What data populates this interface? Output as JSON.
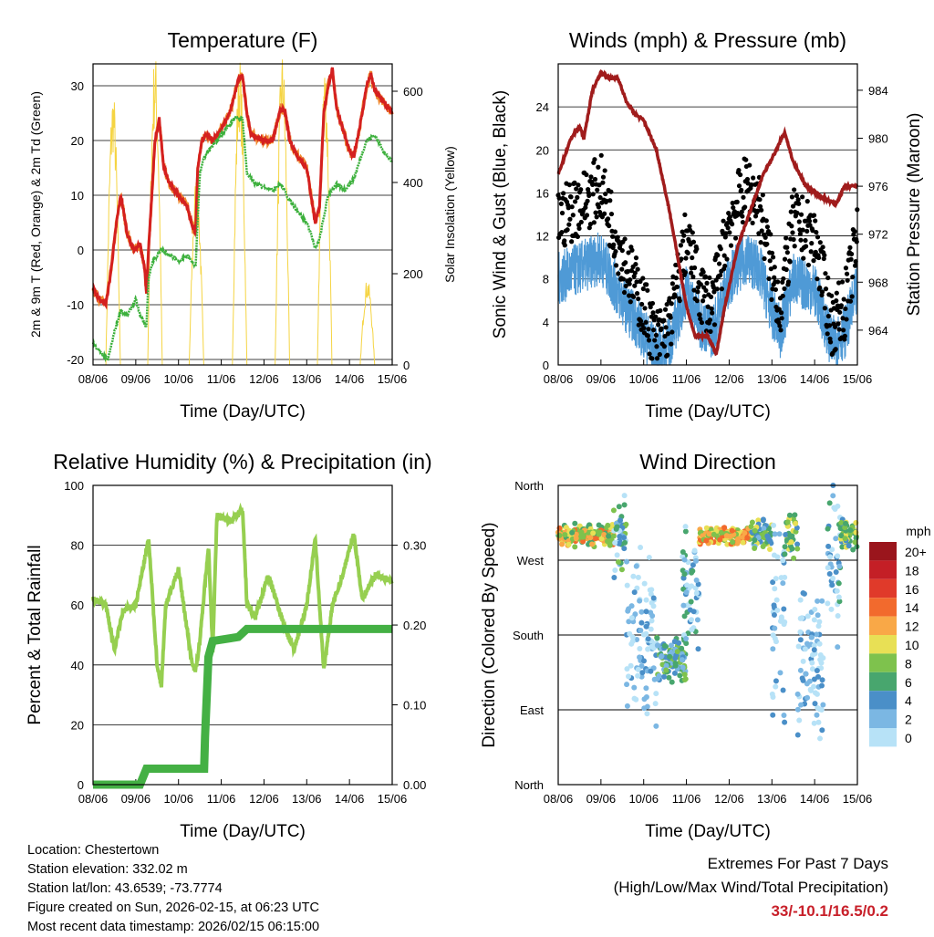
{
  "chart_data": [
    {
      "id": "temp",
      "type": "line",
      "title": "Temperature (F)",
      "xlabel": "Time (Day/UTC)",
      "ylabel": "2m & 9m T (Red, Orange) & 2m Td (Green)",
      "y2label": "Solar Insolation (Yellow)",
      "xticks": [
        "08/06",
        "09/06",
        "10/06",
        "11/06",
        "12/06",
        "13/06",
        "14/06",
        "15/06"
      ],
      "xlim": [
        0,
        7
      ],
      "ylim": [
        -21,
        34
      ],
      "yticks": [
        -20,
        -10,
        0,
        10,
        20,
        30
      ],
      "y2lim": [
        0,
        660
      ],
      "y2ticks": [
        0,
        200,
        400,
        600
      ],
      "series": [
        {
          "name": "2m T",
          "color": "#d42020",
          "axis": "left",
          "points": [
            [
              0,
              -7
            ],
            [
              0.15,
              -9
            ],
            [
              0.3,
              -10
            ],
            [
              0.4,
              -5
            ],
            [
              0.55,
              5
            ],
            [
              0.65,
              10
            ],
            [
              0.8,
              3
            ],
            [
              0.95,
              0
            ],
            [
              1.1,
              1
            ],
            [
              1.2,
              -3
            ],
            [
              1.25,
              -8
            ],
            [
              1.3,
              0
            ],
            [
              1.45,
              20
            ],
            [
              1.55,
              24
            ],
            [
              1.65,
              15
            ],
            [
              1.8,
              12
            ],
            [
              2.0,
              10
            ],
            [
              2.2,
              8
            ],
            [
              2.3,
              5
            ],
            [
              2.4,
              3
            ],
            [
              2.45,
              15
            ],
            [
              2.55,
              20
            ],
            [
              2.65,
              21
            ],
            [
              2.8,
              20
            ],
            [
              3.0,
              22
            ],
            [
              3.2,
              25
            ],
            [
              3.4,
              31
            ],
            [
              3.5,
              32
            ],
            [
              3.6,
              25
            ],
            [
              3.7,
              21
            ],
            [
              4.0,
              20
            ],
            [
              4.2,
              20
            ],
            [
              4.4,
              26
            ],
            [
              4.5,
              25
            ],
            [
              4.6,
              20
            ],
            [
              4.8,
              17
            ],
            [
              5.0,
              15
            ],
            [
              5.1,
              10
            ],
            [
              5.2,
              5
            ],
            [
              5.3,
              8
            ],
            [
              5.4,
              25
            ],
            [
              5.5,
              30
            ],
            [
              5.6,
              33
            ],
            [
              5.7,
              26
            ],
            [
              6.0,
              18
            ],
            [
              6.1,
              17
            ],
            [
              6.3,
              25
            ],
            [
              6.4,
              30
            ],
            [
              6.5,
              32
            ],
            [
              6.6,
              29
            ],
            [
              6.8,
              27
            ],
            [
              7.0,
              25
            ]
          ]
        },
        {
          "name": "2m Td",
          "color": "#3cb03c",
          "axis": "left",
          "points": [
            [
              0,
              -17
            ],
            [
              0.2,
              -19
            ],
            [
              0.35,
              -20
            ],
            [
              0.5,
              -15
            ],
            [
              0.65,
              -11
            ],
            [
              0.8,
              -12
            ],
            [
              1.0,
              -9
            ],
            [
              1.1,
              -12
            ],
            [
              1.25,
              -14
            ],
            [
              1.3,
              -5
            ],
            [
              1.4,
              -2
            ],
            [
              1.6,
              0
            ],
            [
              1.8,
              -1
            ],
            [
              2.0,
              -2
            ],
            [
              2.2,
              -1
            ],
            [
              2.4,
              -3
            ],
            [
              2.5,
              14
            ],
            [
              2.6,
              17
            ],
            [
              2.8,
              19
            ],
            [
              3.0,
              21
            ],
            [
              3.3,
              24
            ],
            [
              3.5,
              24
            ],
            [
              3.6,
              14
            ],
            [
              3.8,
              12
            ],
            [
              4.2,
              11
            ],
            [
              4.4,
              12
            ],
            [
              4.6,
              9
            ],
            [
              4.8,
              7
            ],
            [
              5.0,
              5
            ],
            [
              5.1,
              3
            ],
            [
              5.2,
              0
            ],
            [
              5.3,
              2
            ],
            [
              5.5,
              10
            ],
            [
              5.7,
              12
            ],
            [
              5.9,
              11
            ],
            [
              6.1,
              13
            ],
            [
              6.4,
              20
            ],
            [
              6.6,
              21
            ],
            [
              6.8,
              18
            ],
            [
              7.0,
              16
            ]
          ]
        },
        {
          "name": "Solar insolation",
          "color": "#f5d442",
          "axis": "right",
          "peaks": [
            [
              0.47,
              610
            ],
            [
              1.45,
              690
            ],
            [
              2.42,
              420
            ],
            [
              3.43,
              680
            ],
            [
              4.43,
              690
            ],
            [
              5.42,
              670
            ],
            [
              6.42,
              190
            ]
          ]
        }
      ]
    },
    {
      "id": "wind",
      "type": "line",
      "title": "Winds (mph) & Pressure (mb)",
      "xlabel": "Time (Day/UTC)",
      "ylabel": "Sonic Wind & Gust (Blue, Black)",
      "y2label": "Station Pressure (Maroon)",
      "xticks": [
        "08/06",
        "09/06",
        "10/06",
        "11/06",
        "12/06",
        "13/06",
        "14/06",
        "15/06"
      ],
      "xlim": [
        0,
        7
      ],
      "ylim": [
        0,
        28
      ],
      "yticks": [
        0,
        4,
        8,
        12,
        16,
        20,
        24
      ],
      "y2lim": [
        961.1,
        986.2
      ],
      "y2ticks": [
        964,
        968,
        972,
        976,
        980,
        984
      ],
      "series": [
        {
          "name": "Sonic wind",
          "color": "#4f9ad6",
          "axis": "left",
          "points": [
            [
              0,
              8
            ],
            [
              0.5,
              9
            ],
            [
              1.0,
              10
            ],
            [
              1.5,
              6
            ],
            [
              2.0,
              3
            ],
            [
              2.3,
              1
            ],
            [
              2.6,
              2
            ],
            [
              3.0,
              7
            ],
            [
              3.3,
              4
            ],
            [
              3.6,
              3
            ],
            [
              4.0,
              8
            ],
            [
              4.4,
              10
            ],
            [
              4.7,
              9
            ],
            [
              5.0,
              5
            ],
            [
              5.2,
              3
            ],
            [
              5.5,
              8
            ],
            [
              6.0,
              7
            ],
            [
              6.4,
              2
            ],
            [
              6.7,
              3
            ],
            [
              7.0,
              7
            ]
          ]
        },
        {
          "name": "Gust",
          "color": "#000000",
          "axis": "left",
          "factor": 1.6
        },
        {
          "name": "Station pressure",
          "color": "#a01c1c",
          "axis": "right",
          "points": [
            [
              0,
              977
            ],
            [
              0.3,
              980
            ],
            [
              0.5,
              981
            ],
            [
              0.6,
              980
            ],
            [
              0.8,
              984
            ],
            [
              1.0,
              985.5
            ],
            [
              1.2,
              985
            ],
            [
              1.4,
              985
            ],
            [
              1.6,
              983
            ],
            [
              1.8,
              982
            ],
            [
              2.0,
              981.5
            ],
            [
              2.3,
              979
            ],
            [
              2.6,
              974
            ],
            [
              2.8,
              970
            ],
            [
              3.0,
              966
            ],
            [
              3.2,
              963.5
            ],
            [
              3.5,
              963.5
            ],
            [
              3.7,
              962
            ],
            [
              3.9,
              966
            ],
            [
              4.2,
              971
            ],
            [
              4.5,
              974
            ],
            [
              4.8,
              977
            ],
            [
              5.1,
              979
            ],
            [
              5.3,
              980.5
            ],
            [
              5.5,
              978
            ],
            [
              5.8,
              976
            ],
            [
              6.2,
              975
            ],
            [
              6.5,
              974.5
            ],
            [
              6.7,
              976
            ],
            [
              7.0,
              976
            ]
          ]
        }
      ]
    },
    {
      "id": "rh",
      "type": "line",
      "title": "Relative Humidity (%) & Precipitation (in)",
      "xlabel": "Time (Day/UTC)",
      "ylabel": "Percent & Total Rainfall",
      "xticks": [
        "08/06",
        "09/06",
        "10/06",
        "11/06",
        "12/06",
        "13/06",
        "14/06",
        "15/06"
      ],
      "xlim": [
        0,
        7
      ],
      "ylim": [
        0,
        100
      ],
      "yticks": [
        0,
        20,
        40,
        60,
        80,
        100
      ],
      "y2lim": [
        0,
        0.375
      ],
      "y2ticks": [
        "0.00",
        "0.10",
        "0.20",
        "0.30"
      ],
      "series": [
        {
          "name": "Relative humidity",
          "color": "#96cf50",
          "axis": "left",
          "points": [
            [
              0,
              62
            ],
            [
              0.3,
              60
            ],
            [
              0.5,
              45
            ],
            [
              0.7,
              58
            ],
            [
              1.0,
              60
            ],
            [
              1.3,
              82
            ],
            [
              1.5,
              40
            ],
            [
              1.6,
              33
            ],
            [
              1.7,
              60
            ],
            [
              2.0,
              72
            ],
            [
              2.3,
              42
            ],
            [
              2.4,
              38
            ],
            [
              2.5,
              48
            ],
            [
              2.7,
              80
            ],
            [
              2.8,
              45
            ],
            [
              2.9,
              90
            ],
            [
              3.2,
              88
            ],
            [
              3.5,
              92
            ],
            [
              3.6,
              60
            ],
            [
              3.8,
              56
            ],
            [
              4.1,
              70
            ],
            [
              4.5,
              52
            ],
            [
              4.7,
              45
            ],
            [
              5.0,
              60
            ],
            [
              5.2,
              82
            ],
            [
              5.4,
              38
            ],
            [
              5.6,
              60
            ],
            [
              5.8,
              68
            ],
            [
              6.1,
              84
            ],
            [
              6.3,
              62
            ],
            [
              6.6,
              70
            ],
            [
              7.0,
              68
            ]
          ]
        },
        {
          "name": "Total precipitation",
          "color": "#44b044",
          "axis": "right",
          "points": [
            [
              0,
              0
            ],
            [
              1.1,
              0
            ],
            [
              1.25,
              0.02
            ],
            [
              2.6,
              0.02
            ],
            [
              2.62,
              0.06
            ],
            [
              2.7,
              0.16
            ],
            [
              2.8,
              0.18
            ],
            [
              3.4,
              0.185
            ],
            [
              3.6,
              0.195
            ],
            [
              7,
              0.195
            ]
          ]
        }
      ]
    },
    {
      "id": "dir",
      "type": "scatter",
      "title": "Wind Direction",
      "xlabel": "Time (Day/UTC)",
      "ylabel": "Direction (Colored By Speed)",
      "xticks": [
        "08/06",
        "09/06",
        "10/06",
        "11/06",
        "12/06",
        "13/06",
        "14/06",
        "15/06"
      ],
      "xlim": [
        0,
        7
      ],
      "ylim": [
        0,
        360
      ],
      "yticks": [
        {
          "v": 0,
          "label": "North"
        },
        {
          "v": 90,
          "label": "East"
        },
        {
          "v": 180,
          "label": "South"
        },
        {
          "v": 270,
          "label": "West"
        },
        {
          "v": 360,
          "label": "North"
        }
      ],
      "clusters": [
        [
          0,
          1.3,
          300,
          15,
          11
        ],
        [
          1.3,
          1.6,
          300,
          60,
          5
        ],
        [
          1.6,
          2.3,
          180,
          120,
          2
        ],
        [
          2.3,
          3.0,
          150,
          30,
          6
        ],
        [
          2.9,
          3.3,
          240,
          100,
          4
        ],
        [
          3.3,
          4.5,
          300,
          12,
          12
        ],
        [
          4.5,
          5.0,
          300,
          20,
          7
        ],
        [
          5.0,
          5.3,
          200,
          150,
          2
        ],
        [
          5.3,
          5.6,
          300,
          30,
          8
        ],
        [
          5.6,
          6.2,
          150,
          100,
          2
        ],
        [
          6.3,
          6.6,
          260,
          120,
          3
        ],
        [
          6.6,
          7.0,
          300,
          20,
          8
        ]
      ],
      "legend": {
        "title": "mph",
        "labels": [
          "20+",
          "18",
          "16",
          "14",
          "12",
          "10",
          "8",
          "6",
          "4",
          "2",
          "0"
        ],
        "colors": [
          "#9a151c",
          "#c41f26",
          "#e03a2a",
          "#f26a2d",
          "#f9a847",
          "#e8e055",
          "#7ec24d",
          "#48a66e",
          "#4a8fc8",
          "#7bb7e3",
          "#b7e2f7"
        ]
      }
    }
  ],
  "info": {
    "location": "Location: Chestertown",
    "elevation": "Station elevation: 332.02 m",
    "latlon": "Station lat/lon: 43.6539; -73.7774",
    "created": "Figure created on Sun, 2026-02-15, at 06:23 UTC",
    "recent": "Most recent data timestamp: 2026/02/15 06:15:00"
  },
  "extremes": {
    "title": "Extremes For Past 7 Days",
    "subtitle": "(High/Low/Max Wind/Total Precipitation)",
    "values": "33/-10.1/16.5/0.2"
  }
}
